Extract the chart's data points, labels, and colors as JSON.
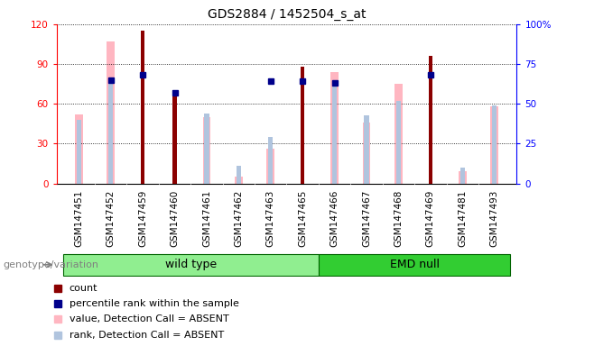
{
  "title": "GDS2884 / 1452504_s_at",
  "samples": [
    "GSM147451",
    "GSM147452",
    "GSM147459",
    "GSM147460",
    "GSM147461",
    "GSM147462",
    "GSM147463",
    "GSM147465",
    "GSM147466",
    "GSM147467",
    "GSM147468",
    "GSM147469",
    "GSM147481",
    "GSM147493"
  ],
  "count": [
    0,
    0,
    115,
    70,
    0,
    0,
    0,
    88,
    0,
    0,
    0,
    96,
    0,
    0
  ],
  "percentile_rank": [
    0,
    65,
    68,
    57,
    0,
    0,
    64,
    64,
    63,
    0,
    0,
    68,
    0,
    0
  ],
  "value_absent": [
    52,
    107,
    0,
    0,
    50,
    5,
    26,
    0,
    84,
    46,
    75,
    0,
    9,
    58
  ],
  "rank_absent": [
    40,
    63,
    0,
    0,
    44,
    11,
    29,
    0,
    61,
    43,
    52,
    0,
    10,
    49
  ],
  "wild_type_count": 8,
  "emd_null_count": 6,
  "ylim_left": [
    0,
    120
  ],
  "ylim_right": [
    0,
    100
  ],
  "yticks_left": [
    0,
    30,
    60,
    90,
    120
  ],
  "yticks_right": [
    0,
    25,
    50,
    75,
    100
  ],
  "ytick_labels_left": [
    "0",
    "30",
    "60",
    "90",
    "120"
  ],
  "ytick_labels_right": [
    "0",
    "25",
    "50",
    "75",
    "100%"
  ],
  "color_count": "#8B0000",
  "color_percentile": "#00008B",
  "color_value_absent": "#FFB6C1",
  "color_rank_absent": "#B0C4DE",
  "color_wildtype_bg": "#90EE90",
  "color_emdnull_bg": "#32CD32",
  "color_xtick_bg": "#C0C0C0",
  "label_count": "count",
  "label_percentile": "percentile rank within the sample",
  "label_value_absent": "value, Detection Call = ABSENT",
  "label_rank_absent": "rank, Detection Call = ABSENT",
  "label_wildtype": "wild type",
  "label_emdnull": "EMD null",
  "label_genotype": "genotype/variation",
  "title_fontsize": 10,
  "axis_fontsize": 7.5,
  "legend_fontsize": 8
}
